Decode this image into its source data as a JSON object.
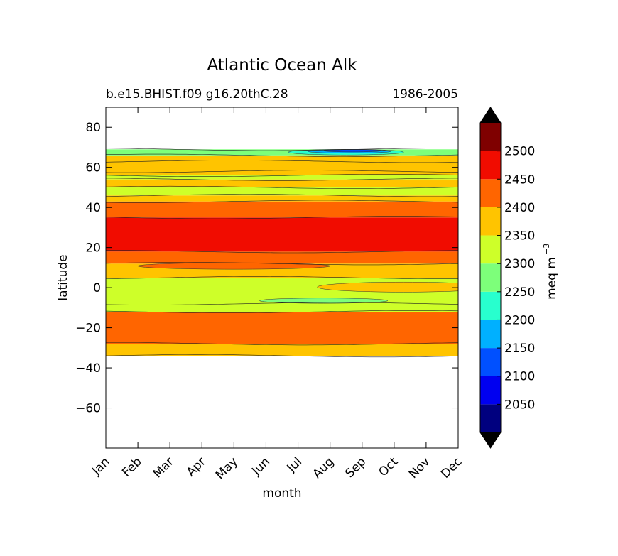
{
  "chart_data": {
    "type": "heatmap",
    "title": "Atlantic Ocean Alk",
    "subtitle_left": "b.e15.BHIST.f09 g16.20thC.28",
    "subtitle_right": "1986-2005",
    "xlabel": "month",
    "ylabel": "latitude",
    "x_categories": [
      "Jan",
      "Feb",
      "Mar",
      "Apr",
      "May",
      "Jun",
      "Jul",
      "Aug",
      "Sep",
      "Oct",
      "Nov",
      "Dec"
    ],
    "ylim": [
      -80,
      90
    ],
    "yticks": [
      80,
      60,
      40,
      20,
      0,
      -20,
      -40,
      -60
    ],
    "colorbar": {
      "label": "meq m",
      "label_exponent": "−3",
      "levels": [
        2000,
        2050,
        2100,
        2150,
        2200,
        2250,
        2300,
        2350,
        2400,
        2450,
        2500,
        2550
      ],
      "tick_labels": [
        "2050",
        "2100",
        "2150",
        "2200",
        "2250",
        "2300",
        "2350",
        "2400",
        "2450",
        "2500"
      ],
      "colors": [
        "#00007f",
        "#0000f0",
        "#0050ff",
        "#00b0ff",
        "#28ffce",
        "#7dff7a",
        "#ceff29",
        "#ffc400",
        "#ff6500",
        "#f10c00",
        "#7f0000"
      ],
      "extend_under_color": "#000000",
      "extend_over_color": "#000000"
    },
    "bands": [
      {
        "lat_min": -34,
        "lat_max": -28,
        "value": 2375
      },
      {
        "lat_min": -28,
        "lat_max": -12,
        "value": 2425
      },
      {
        "lat_min": -12,
        "lat_max": 5,
        "value": 2325
      },
      {
        "lat_min": 5,
        "lat_max": 12,
        "value": 2375
      },
      {
        "lat_min": 12,
        "lat_max": 18,
        "value": 2425
      },
      {
        "lat_min": 18,
        "lat_max": 35,
        "value": 2475
      },
      {
        "lat_min": 35,
        "lat_max": 43,
        "value": 2425
      },
      {
        "lat_min": 43,
        "lat_max": 46,
        "value": 2375
      },
      {
        "lat_min": 46,
        "lat_max": 50,
        "value": 2325
      },
      {
        "lat_min": 50,
        "lat_max": 54,
        "value": 2375
      },
      {
        "lat_min": 54,
        "lat_max": 56,
        "value": 2325
      },
      {
        "lat_min": 56,
        "lat_max": 66,
        "value": 2375
      },
      {
        "lat_min": 66,
        "lat_max": 69,
        "value": 2275
      }
    ],
    "anomalies": [
      {
        "month_center": 7.5,
        "month_halfwidth": 1.8,
        "lat_center": 67.6,
        "lat_halfwidth": 1.4,
        "value": 2225
      },
      {
        "month_center": 7.6,
        "month_halfwidth": 1.3,
        "lat_center": 68.0,
        "lat_halfwidth": 0.9,
        "value": 2175
      },
      {
        "month_center": 7.7,
        "month_halfwidth": 0.9,
        "lat_center": 68.3,
        "lat_halfwidth": 0.6,
        "value": 2125
      },
      {
        "month_center": 6.8,
        "month_halfwidth": 2.0,
        "lat_center": -6.5,
        "lat_halfwidth": 1.3,
        "value": 2275
      },
      {
        "month_center": 9.3,
        "month_halfwidth": 2.7,
        "lat_center": 0.3,
        "lat_halfwidth": 2.5,
        "value": 2375
      },
      {
        "month_center": 4.0,
        "month_halfwidth": 3.0,
        "lat_center": 10.8,
        "lat_halfwidth": 1.6,
        "value": 2425
      }
    ],
    "contour_lines": [
      -34,
      -28,
      -12,
      -8,
      5,
      12,
      18,
      35,
      43,
      46,
      50,
      54,
      56,
      58,
      63,
      66,
      69
    ]
  }
}
